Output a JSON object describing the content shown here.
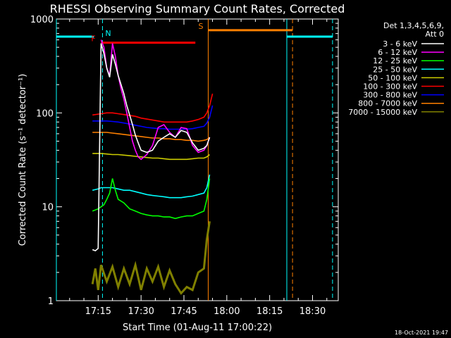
{
  "chart_data": {
    "type": "line",
    "title": "RHESSI Observing Summary Count Rates, Corrected",
    "xlabel": "Start Time (01-Aug-11 17:00:22)",
    "ylabel": "Corrected Count Rate (s⁻¹ detector⁻¹)",
    "yscale": "log",
    "ylim": [
      1,
      1000
    ],
    "xlim": [
      "17:00:22",
      "18:39:00"
    ],
    "x_ticks": [
      "17:15",
      "17:30",
      "17:45",
      "18:00",
      "18:15",
      "18:30"
    ],
    "y_ticks": [
      "1",
      "10",
      "100",
      "1000"
    ],
    "legend_title": [
      "Det 1,3,4,5,6,9,",
      "Att 0"
    ],
    "legend_position": "right",
    "footer": "18-Oct-2021 19:47",
    "series": [
      {
        "name": "3 - 6 keV",
        "color": "#ffffff",
        "x": [
          "17:13",
          "17:14",
          "17:15",
          "17:16",
          "17:17",
          "17:18",
          "17:19",
          "17:20",
          "17:21",
          "17:22",
          "17:23",
          "17:24",
          "17:25",
          "17:26",
          "17:27",
          "17:28",
          "17:29",
          "17:30",
          "17:32",
          "17:34",
          "17:36",
          "17:38",
          "17:40",
          "17:42",
          "17:44",
          "17:46",
          "17:48",
          "17:50",
          "17:52",
          "17:53",
          "17:54"
        ],
        "values": [
          3.5,
          3.4,
          3.6,
          550,
          430,
          300,
          240,
          420,
          330,
          250,
          200,
          160,
          120,
          95,
          75,
          58,
          48,
          40,
          38,
          40,
          50,
          55,
          60,
          55,
          65,
          62,
          48,
          40,
          42,
          45,
          55
        ]
      },
      {
        "name": "6 - 12 keV",
        "color": "#ff00ff",
        "x": [
          "17:16",
          "17:17",
          "17:18",
          "17:19",
          "17:20",
          "17:21",
          "17:22",
          "17:23",
          "17:24",
          "17:25",
          "17:26",
          "17:27",
          "17:28",
          "17:29",
          "17:30",
          "17:32",
          "17:34",
          "17:36",
          "17:38",
          "17:40",
          "17:42",
          "17:44",
          "17:46",
          "17:48",
          "17:50",
          "17:52",
          "17:53",
          "17:54"
        ],
        "values": [
          600,
          500,
          300,
          250,
          550,
          400,
          250,
          180,
          140,
          100,
          70,
          50,
          40,
          34,
          32,
          36,
          45,
          70,
          75,
          62,
          55,
          70,
          68,
          45,
          38,
          40,
          45,
          55
        ]
      },
      {
        "name": "12 - 25 keV",
        "color": "#00ff00",
        "x": [
          "17:13",
          "17:15",
          "17:16",
          "17:17",
          "17:18",
          "17:19",
          "17:20",
          "17:21",
          "17:22",
          "17:24",
          "17:26",
          "17:28",
          "17:30",
          "17:32",
          "17:34",
          "17:36",
          "17:38",
          "17:40",
          "17:42",
          "17:44",
          "17:46",
          "17:48",
          "17:50",
          "17:52",
          "17:53",
          "17:54"
        ],
        "values": [
          9,
          9.5,
          10,
          10.5,
          12,
          14,
          20,
          15,
          12,
          11,
          9.5,
          9,
          8.5,
          8.2,
          8,
          8,
          7.8,
          7.8,
          7.5,
          7.8,
          8,
          8,
          8.5,
          9,
          12,
          20
        ]
      },
      {
        "name": "25 - 50 keV",
        "color": "#00ffff",
        "x": [
          "17:13",
          "17:15",
          "17:16",
          "17:18",
          "17:20",
          "17:22",
          "17:24",
          "17:26",
          "17:28",
          "17:30",
          "17:32",
          "17:34",
          "17:36",
          "17:38",
          "17:40",
          "17:42",
          "17:44",
          "17:46",
          "17:48",
          "17:50",
          "17:52",
          "17:53",
          "17:54"
        ],
        "values": [
          15,
          15.5,
          16,
          16,
          16,
          15.5,
          15,
          15,
          14.5,
          14,
          13.5,
          13.2,
          13,
          12.8,
          12.5,
          12.5,
          12.5,
          12.8,
          13,
          13.5,
          14,
          16,
          22
        ]
      },
      {
        "name": "50 - 100 keV",
        "color": "#cccc00",
        "x": [
          "17:13",
          "17:16",
          "17:18",
          "17:20",
          "17:22",
          "17:24",
          "17:26",
          "17:28",
          "17:30",
          "17:32",
          "17:34",
          "17:36",
          "17:38",
          "17:40",
          "17:42",
          "17:44",
          "17:46",
          "17:48",
          "17:50",
          "17:52",
          "17:53",
          "17:54"
        ],
        "values": [
          37,
          37,
          36.5,
          36,
          36,
          35.5,
          35,
          34.5,
          34,
          33.5,
          33,
          33,
          32.5,
          32,
          32,
          32,
          32,
          32.5,
          33,
          33,
          34,
          36
        ]
      },
      {
        "name": "100 - 300 keV",
        "color": "#ff0000",
        "x": [
          "17:13",
          "17:16",
          "17:18",
          "17:20",
          "17:22",
          "17:24",
          "17:26",
          "17:28",
          "17:30",
          "17:32",
          "17:34",
          "17:36",
          "17:38",
          "17:40",
          "17:42",
          "17:44",
          "17:46",
          "17:48",
          "17:50",
          "17:52",
          "17:53",
          "17:54",
          "17:55"
        ],
        "values": [
          95,
          98,
          100,
          100,
          98,
          96,
          94,
          92,
          88,
          86,
          84,
          82,
          80,
          80,
          80,
          80,
          80,
          82,
          85,
          90,
          100,
          120,
          160
        ]
      },
      {
        "name": "300 - 800 keV",
        "color": "#0000ff",
        "x": [
          "17:13",
          "17:16",
          "17:18",
          "17:20",
          "17:22",
          "17:24",
          "17:26",
          "17:28",
          "17:30",
          "17:32",
          "17:34",
          "17:36",
          "17:38",
          "17:40",
          "17:42",
          "17:44",
          "17:46",
          "17:48",
          "17:50",
          "17:52",
          "17:53",
          "17:54",
          "17:55"
        ],
        "values": [
          82,
          82,
          82,
          81,
          80,
          78,
          76,
          74,
          72,
          70,
          69,
          68,
          68,
          67,
          67,
          67,
          67,
          68,
          70,
          72,
          78,
          90,
          120
        ]
      },
      {
        "name": "800 - 7000 keV",
        "color": "#ff8000",
        "x": [
          "17:13",
          "17:16",
          "17:18",
          "17:20",
          "17:22",
          "17:24",
          "17:26",
          "17:28",
          "17:30",
          "17:32",
          "17:34",
          "17:36",
          "17:38",
          "17:40",
          "17:42",
          "17:44",
          "17:46",
          "17:48",
          "17:50",
          "17:52",
          "17:53",
          "17:54"
        ],
        "values": [
          62,
          62,
          62,
          61,
          60,
          59,
          58,
          57,
          56,
          55,
          54,
          54,
          53,
          53,
          52,
          52,
          51,
          51,
          50,
          51,
          52,
          55
        ]
      },
      {
        "name": "7000 - 15000 keV",
        "color": "#808000",
        "x": [
          "17:13",
          "17:14",
          "17:15",
          "17:16",
          "17:18",
          "17:20",
          "17:22",
          "17:24",
          "17:26",
          "17:28",
          "17:30",
          "17:32",
          "17:34",
          "17:36",
          "17:38",
          "17:40",
          "17:42",
          "17:44",
          "17:46",
          "17:48",
          "17:50",
          "17:52",
          "17:53",
          "17:54"
        ],
        "values": [
          1.5,
          2.2,
          1.3,
          2.4,
          1.6,
          2.3,
          1.4,
          2.2,
          1.5,
          2.4,
          1.3,
          2.2,
          1.6,
          2.3,
          1.4,
          2.1,
          1.5,
          1.2,
          1.4,
          1.3,
          2.0,
          2.2,
          4.5,
          7
        ]
      }
    ],
    "status_bars": [
      {
        "flag": "",
        "color": "#00ffff",
        "ranges": [
          [
            "17:00:22",
            "17:13:30"
          ],
          [
            "18:21:00",
            "18:37:00"
          ]
        ],
        "level": 650
      },
      {
        "flag": "F",
        "color": "#ff0000",
        "ranges": [
          [
            "17:16:00",
            "17:49:00"
          ]
        ],
        "level": 560
      },
      {
        "flag": "S",
        "color": "#ff8000",
        "ranges": [
          [
            "17:53:30",
            "18:23:00"
          ]
        ],
        "level": 760
      }
    ],
    "markers": [
      {
        "label": "N",
        "color": "#00ffff",
        "x": "17:16:30",
        "style": "dashed"
      },
      {
        "label": "",
        "color": "#00ffff",
        "x": "17:00:22",
        "style": "solid"
      },
      {
        "label": "",
        "color": "#ff8000",
        "x": "17:53:30",
        "style": "solid"
      },
      {
        "label": "",
        "color": "#00ffff",
        "x": "18:21:00",
        "style": "solid"
      },
      {
        "label": "",
        "color": "#ff8000",
        "x": "18:23:00",
        "style": "dashed"
      },
      {
        "label": "",
        "color": "#00ffff",
        "x": "18:37:00",
        "style": "dashed"
      }
    ]
  }
}
